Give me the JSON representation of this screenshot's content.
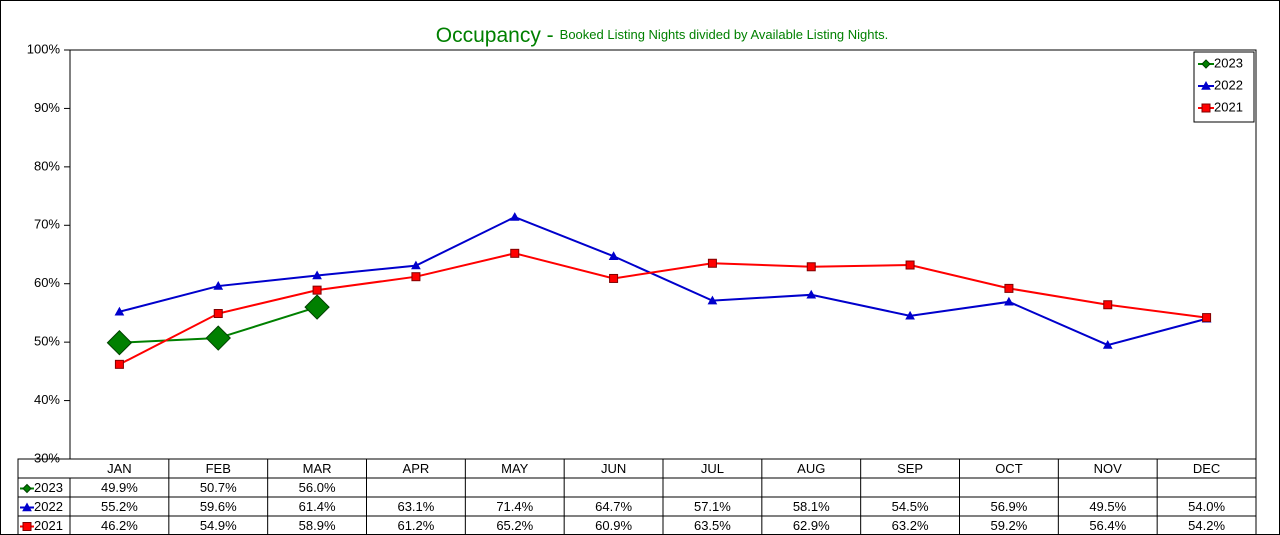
{
  "chart_data": {
    "type": "line",
    "title": "Occupancy -",
    "subtitle": "Booked Listing Nights divided by Available Listing Nights.",
    "categories": [
      "JAN",
      "FEB",
      "MAR",
      "APR",
      "MAY",
      "JUN",
      "JUL",
      "AUG",
      "SEP",
      "OCT",
      "NOV",
      "DEC"
    ],
    "series": [
      {
        "name": "2023",
        "color": "#008000",
        "marker": "diamond",
        "values": [
          49.9,
          50.7,
          56.0,
          null,
          null,
          null,
          null,
          null,
          null,
          null,
          null,
          null
        ],
        "value_labels": [
          "49.9%",
          "50.7%",
          "56.0%",
          null,
          null,
          null,
          null,
          null,
          null,
          null,
          null,
          null
        ]
      },
      {
        "name": "2022",
        "color": "#0000cc",
        "marker": "triangle",
        "values": [
          55.2,
          59.6,
          61.4,
          63.1,
          71.4,
          64.7,
          57.1,
          58.1,
          54.5,
          56.9,
          49.5,
          54.0
        ],
        "value_labels": [
          "55.2%",
          "59.6%",
          "61.4%",
          "63.1%",
          "71.4%",
          "64.7%",
          "57.1%",
          "58.1%",
          "54.5%",
          "56.9%",
          "49.5%",
          "54.0%"
        ]
      },
      {
        "name": "2021",
        "color": "#ff0000",
        "marker": "square",
        "values": [
          46.2,
          54.9,
          58.9,
          61.2,
          65.2,
          60.9,
          63.5,
          62.9,
          63.2,
          59.2,
          56.4,
          54.2
        ],
        "value_labels": [
          "46.2%",
          "54.9%",
          "58.9%",
          "61.2%",
          "65.2%",
          "60.9%",
          "63.5%",
          "62.9%",
          "63.2%",
          "59.2%",
          "56.4%",
          "54.2%"
        ]
      }
    ],
    "ylim": [
      30,
      100
    ],
    "yticks": [
      {
        "value": 30,
        "label": "30%"
      },
      {
        "value": 40,
        "label": "40%"
      },
      {
        "value": 50,
        "label": "50%"
      },
      {
        "value": 60,
        "label": "60%"
      },
      {
        "value": 70,
        "label": "70%"
      },
      {
        "value": 80,
        "label": "80%"
      },
      {
        "value": 90,
        "label": "90%"
      },
      {
        "value": 100,
        "label": "100%"
      }
    ],
    "grid": false,
    "legend": "top-right"
  }
}
